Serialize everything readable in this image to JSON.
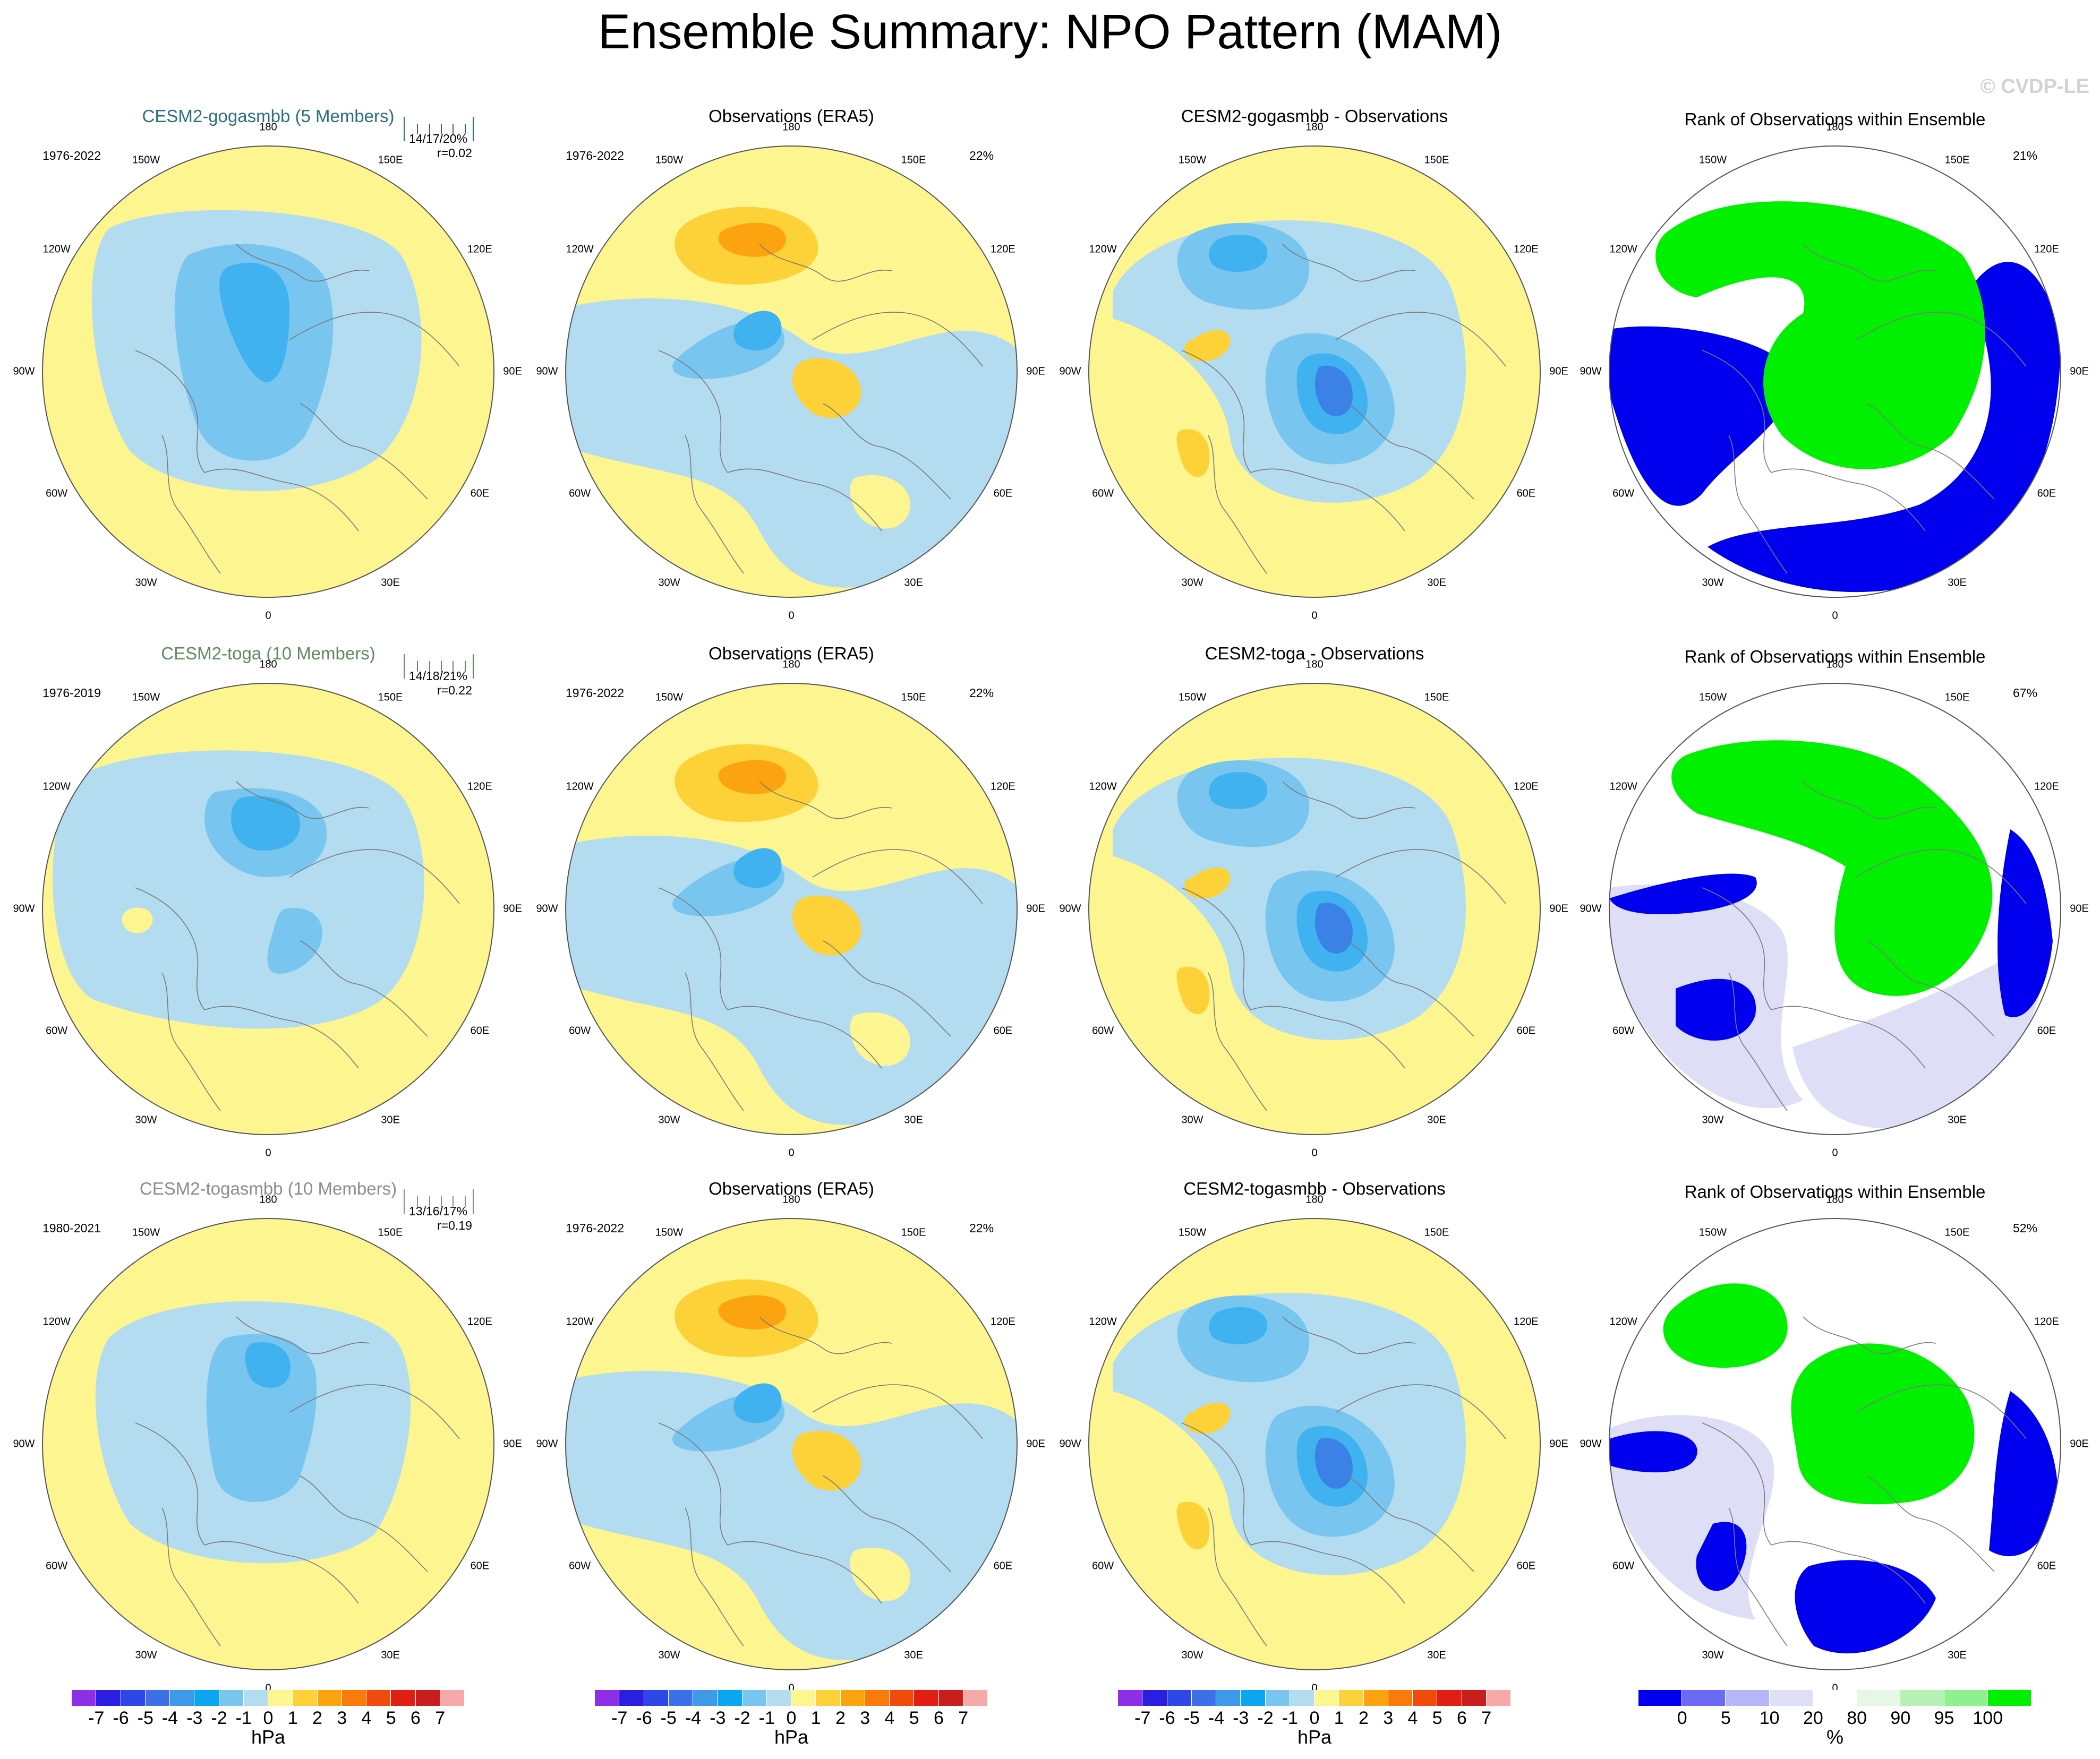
{
  "title": "Ensemble Summary: NPO Pattern (MAM)",
  "watermark": "© CVDP-LE",
  "colors": {
    "yellow": "#fdf58f",
    "lightblue": "#b3dcf0",
    "blue1": "#78c5ef",
    "blue2": "#3fb2ef",
    "blue3": "#0aa6ef",
    "blue4": "#3c82e6",
    "orange1": "#fdd238",
    "orange2": "#fca40f",
    "rank_blue": "#0000ef",
    "rank_green": "#00f000",
    "rank_lavender": "#dedef7",
    "rank_mint": "#e5f8e5"
  },
  "longitude_labels": [
    "180",
    "150E",
    "120E",
    "90E",
    "60E",
    "30E",
    "0",
    "30W",
    "60W",
    "90W",
    "120W",
    "150W"
  ],
  "rows": [
    {
      "model_title": "CESM2-gogasmbb (5 Members)",
      "model_title_color": "#2a6f80",
      "model_years": "1976-2022",
      "stat_line1": "14/17/20%",
      "stat_line2": "r=0.02",
      "obs_title": "Observations (ERA5)",
      "obs_years": "1976-2022",
      "obs_pct": "22%",
      "diff_title": "CESM2-gogasmbb - Observations",
      "rank_title": "Rank of Observations within Ensemble",
      "rank_pct": "21%"
    },
    {
      "model_title": "CESM2-toga (10 Members)",
      "model_title_color": "#5f8a5f",
      "model_years": "1976-2019",
      "stat_line1": "14/18/21%",
      "stat_line2": "r=0.22",
      "obs_title": "Observations (ERA5)",
      "obs_years": "1976-2022",
      "obs_pct": "22%",
      "diff_title": "CESM2-toga - Observations",
      "rank_title": "Rank of Observations within Ensemble",
      "rank_pct": "67%"
    },
    {
      "model_title": "CESM2-togasmbb (10 Members)",
      "model_title_color": "#8c8c8c",
      "model_years": "1980-2021",
      "stat_line1": "13/16/17%",
      "stat_line2": "r=0.19",
      "obs_title": "Observations (ERA5)",
      "obs_years": "1976-2022",
      "obs_pct": "22%",
      "diff_title": "CESM2-togasmbb - Observations",
      "rank_title": "Rank of Observations within Ensemble",
      "rank_pct": "52%"
    }
  ],
  "colorbar_hpa": {
    "labels": [
      "-7",
      "-6",
      "-5",
      "-4",
      "-3",
      "-2",
      "-1",
      "0",
      "1",
      "2",
      "3",
      "4",
      "5",
      "6",
      "7"
    ],
    "colors": [
      "#8c2fe6",
      "#2a1ee0",
      "#2e46e8",
      "#3c6fe8",
      "#3d9ae8",
      "#0aa6ef",
      "#78c5ef",
      "#b3dcf0",
      "#fdf58f",
      "#fdd238",
      "#fca40f",
      "#fa7a0a",
      "#f04b0a",
      "#e11e14",
      "#c81e1e",
      "#f7a8a8"
    ],
    "unit": "hPa"
  },
  "colorbar_rank": {
    "labels": [
      "0",
      "5",
      "10",
      "20",
      "80",
      "90",
      "95",
      "100"
    ],
    "colors": [
      "#0000ef",
      "#6a6af5",
      "#b5b5f7",
      "#dedef7",
      "#ffffff",
      "#e5f8e5",
      "#b8f0b8",
      "#8ff08f",
      "#00f000"
    ],
    "unit": "%"
  }
}
